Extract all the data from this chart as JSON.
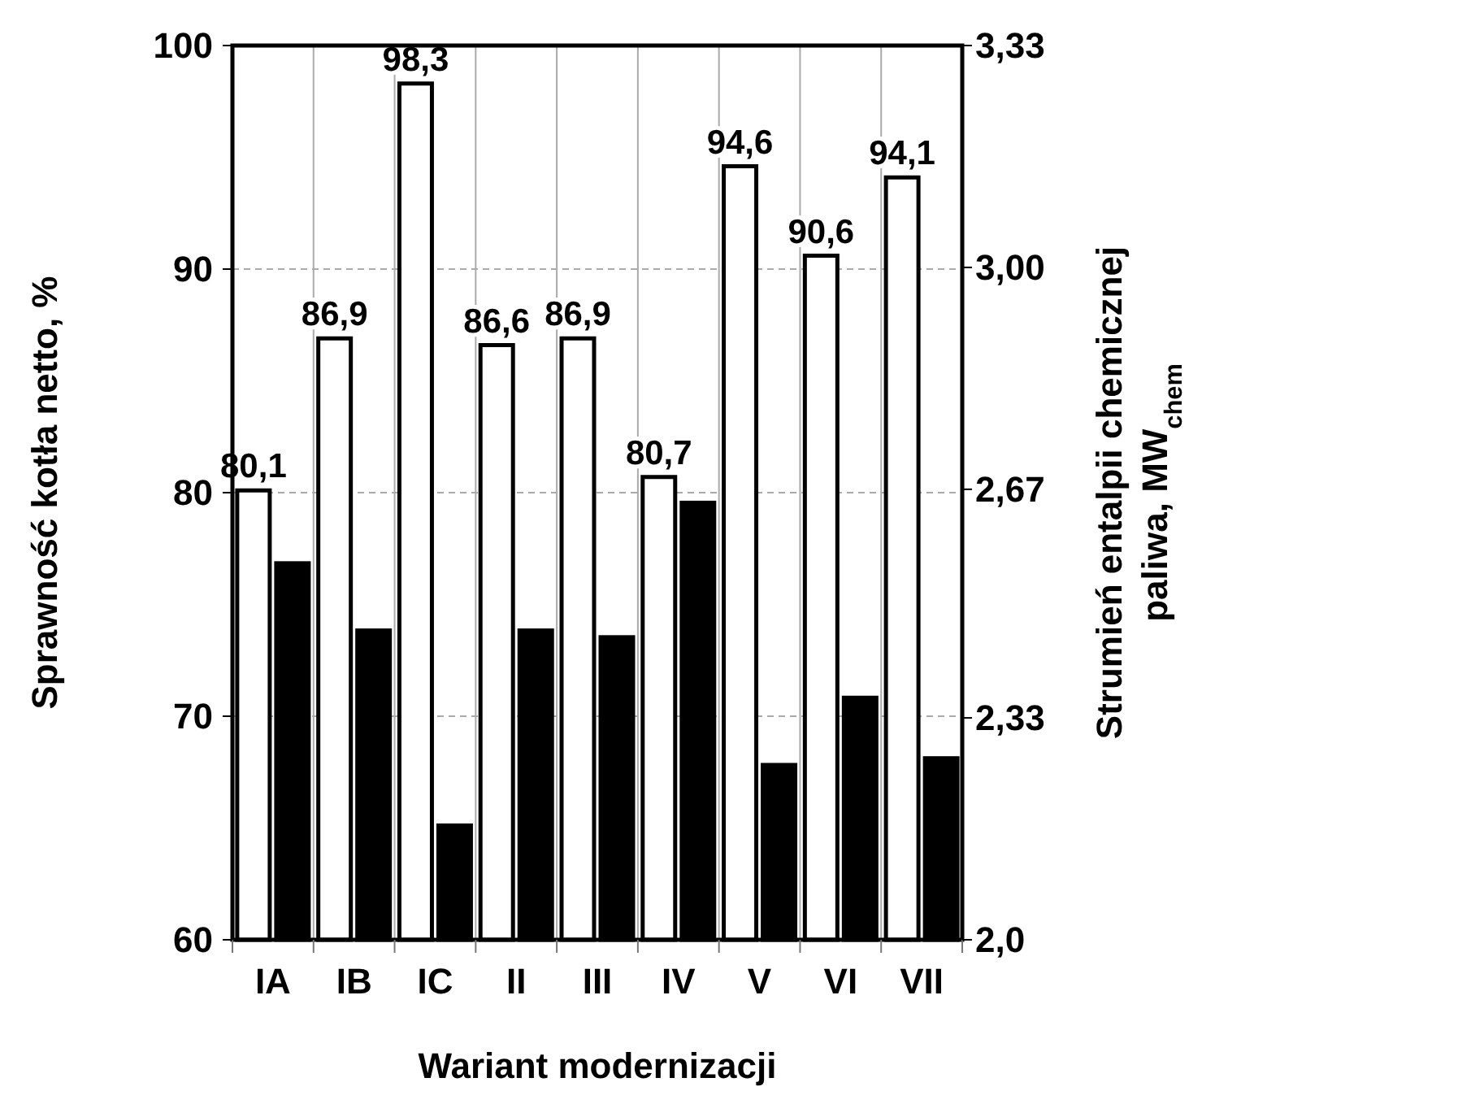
{
  "chart_data": {
    "type": "bar",
    "categories": [
      "IA",
      "IB",
      "IC",
      "II",
      "III",
      "IV",
      "V",
      "VI",
      "VII"
    ],
    "series": [
      {
        "color": "#ffffff",
        "values": [
          80.1,
          86.9,
          98.3,
          86.6,
          86.9,
          80.7,
          94.6,
          90.6,
          94.1
        ],
        "value_labels": [
          "80,1",
          "86,9",
          "98,3",
          "86,6",
          "86,9",
          "80,7",
          "94,6",
          "90,6",
          "94,1"
        ]
      },
      {
        "color": "#000000",
        "axis": "y2",
        "values": [
          2.56,
          2.46,
          2.17,
          2.46,
          2.45,
          2.65,
          2.26,
          2.36,
          2.27
        ]
      }
    ],
    "xlabel": "Wariant modernizacji",
    "ylabel": "Sprawność kotła netto, %",
    "y2label": "Strumień entalpii chemicznej paliwa, MW$_{chem}$",
    "ylim": [
      60,
      100
    ],
    "yticks": [
      60,
      70,
      80,
      90,
      100
    ],
    "y2lim": [
      2.0,
      3.33
    ],
    "y2ticks": [
      {
        "value": 2.0,
        "label": "2,0"
      },
      {
        "value": 2.33,
        "label": "2,33"
      },
      {
        "value": 2.67,
        "label": "2,67"
      },
      {
        "value": 3.0,
        "label": "3,00"
      },
      {
        "value": 3.33,
        "label": "3,33"
      }
    ],
    "grid": true
  }
}
